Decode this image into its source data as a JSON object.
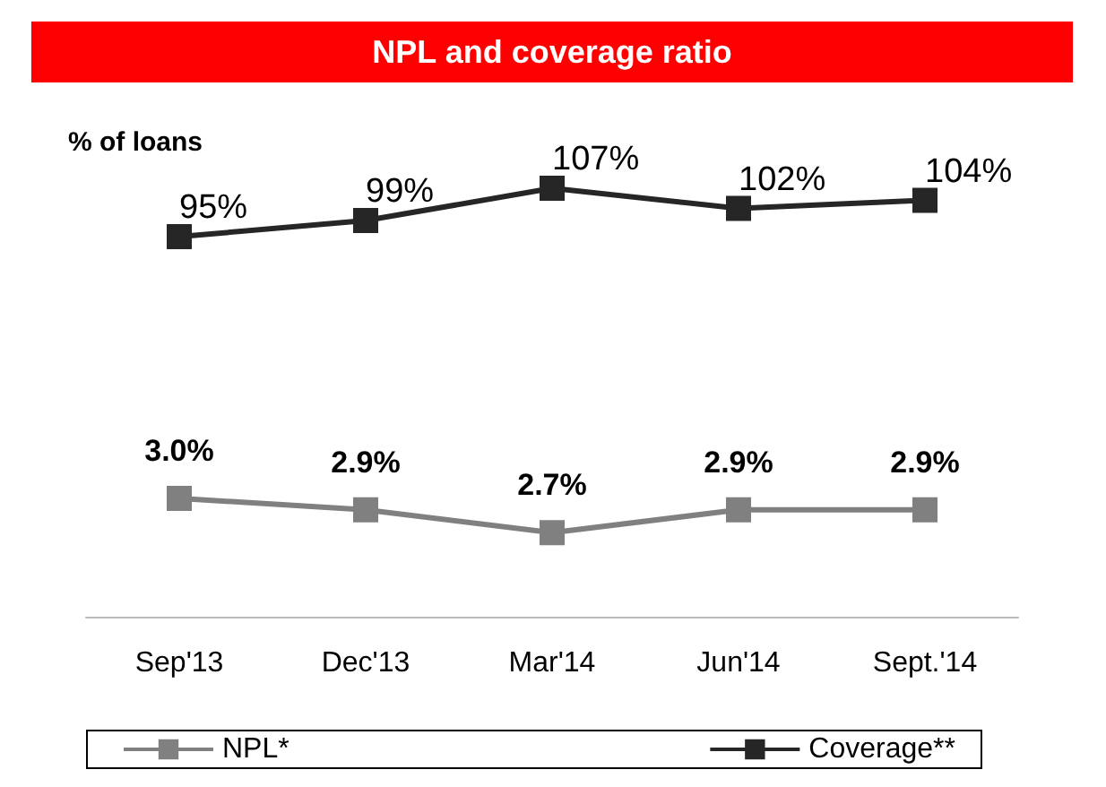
{
  "chart_data": [
    {
      "type": "line",
      "title": "NPL and coverage ratio",
      "annotations": [
        "% of loans"
      ],
      "categories": [
        null,
        null,
        null,
        null,
        null
      ],
      "series": [
        {
          "name": "Coverage**",
          "color": "#262626",
          "values": [
            95,
            99,
            107,
            102,
            104
          ],
          "value_labels": [
            "95%",
            "99%",
            "107%",
            "102%",
            "104%"
          ]
        }
      ],
      "tick_labels": false,
      "marker": "square",
      "line_style": "solid",
      "legend": "bottom right"
    },
    {
      "type": "line",
      "categories": [
        "Sep'13",
        "Dec'13",
        "Mar'14",
        "Jun'14",
        "Sept.'14"
      ],
      "series": [
        {
          "name": "NPL*",
          "color": "#808080",
          "values": [
            3.0,
            2.9,
            2.7,
            2.9,
            2.9
          ],
          "value_labels": [
            "3.0%",
            "2.9%",
            "2.7%",
            "2.9%",
            "2.9%"
          ]
        }
      ],
      "tick_labels": "x",
      "marker": "square",
      "line_style": "solid",
      "legend": "bottom left"
    }
  ]
}
